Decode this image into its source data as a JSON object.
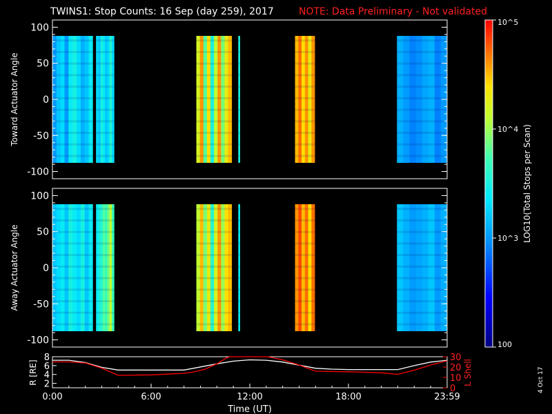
{
  "title": "TWINS1: Stop Counts: 16 Sep (day 259), 2017",
  "note": "NOTE: Data Preliminary - Not validated",
  "date_stamp": "4 Oct 17",
  "colors": {
    "background": "#000000",
    "text": "#ffffff",
    "note": "#ff2020",
    "radius_line": "#ffffff",
    "lshell_line": "#ff0000"
  },
  "chart_data": [
    {
      "type": "heatmap",
      "panel": "toward",
      "ylabel": "Toward Actuator Angle",
      "ylim": [
        -110,
        110
      ],
      "yticks": [
        "100",
        "50",
        "0",
        "-50",
        "-100"
      ],
      "angle_range": [
        -88,
        88
      ],
      "x_unit": "hours UT",
      "xlim": [
        0,
        24
      ],
      "data_blocks": [
        {
          "start": 0.0,
          "end": 2.45,
          "level": "medium",
          "values": [
            3.0,
            3.2,
            3.3,
            3.0,
            3.4,
            3.5,
            3.3,
            3.1,
            3.2,
            3.4
          ]
        },
        {
          "start": 2.65,
          "end": 3.75,
          "level": "medium",
          "values": [
            3.3,
            3.2,
            3.5,
            3.4,
            3.2,
            3.3,
            3.6,
            3.3
          ]
        },
        {
          "start": 8.75,
          "end": 10.9,
          "level": "high",
          "values": [
            4.2,
            4.6,
            3.8,
            4.4,
            3.5,
            4.1,
            4.6,
            3.9,
            4.3,
            4.5
          ]
        },
        {
          "start": 11.3,
          "end": 11.4,
          "level": "medium",
          "values": [
            3.5
          ]
        },
        {
          "start": 14.75,
          "end": 15.95,
          "level": "high",
          "values": [
            4.5,
            4.7,
            4.4,
            4.6,
            4.3,
            4.6
          ]
        },
        {
          "start": 20.95,
          "end": 24.0,
          "level": "low",
          "values": [
            3.1,
            3.0,
            2.9,
            2.95,
            3.05,
            3.1,
            2.9,
            3.0
          ]
        }
      ]
    },
    {
      "type": "heatmap",
      "panel": "away",
      "ylabel": "Away Actuator Angle",
      "ylim": [
        -110,
        110
      ],
      "yticks": [
        "100",
        "50",
        "0",
        "-50",
        "-100"
      ],
      "angle_range": [
        -88,
        88
      ],
      "x_unit": "hours UT",
      "xlim": [
        0,
        24
      ],
      "data_blocks": [
        {
          "start": 0.0,
          "end": 2.45,
          "level": "medium",
          "values": [
            3.2,
            3.3,
            3.4,
            3.2,
            3.5,
            3.4,
            3.3,
            3.5,
            3.2,
            3.4
          ]
        },
        {
          "start": 2.65,
          "end": 3.75,
          "level": "medium",
          "values": [
            3.4,
            3.5,
            3.6,
            3.8,
            3.7,
            3.9,
            4.1,
            3.7
          ]
        },
        {
          "start": 8.75,
          "end": 10.9,
          "level": "high",
          "values": [
            4.1,
            4.5,
            3.9,
            4.3,
            3.6,
            4.2,
            4.6,
            4.0,
            4.4,
            4.5
          ]
        },
        {
          "start": 11.3,
          "end": 11.4,
          "level": "medium",
          "values": [
            3.4
          ]
        },
        {
          "start": 14.75,
          "end": 15.95,
          "level": "high",
          "values": [
            4.6,
            4.8,
            4.5,
            4.7,
            4.4,
            4.7
          ]
        },
        {
          "start": 20.95,
          "end": 24.0,
          "level": "low",
          "values": [
            3.2,
            3.1,
            3.0,
            3.05,
            3.1,
            3.2,
            3.0,
            3.1
          ]
        }
      ]
    },
    {
      "type": "line",
      "panel": "orbit",
      "ylabel_left": "R [RE]",
      "ylabel_right": "L Shell",
      "ylim_left": [
        1,
        8
      ],
      "ylim_right": [
        0,
        30
      ],
      "yticks_left": [
        "8",
        "6",
        "4",
        "2"
      ],
      "yticks_right": [
        "30",
        "20",
        "10",
        "0"
      ],
      "xlabel": "Time (UT)",
      "xticks": [
        "0:00",
        "6:00",
        "12:00",
        "18:00",
        "23:59"
      ],
      "xlim": [
        0,
        24
      ],
      "series": [
        {
          "axis": "left",
          "x": [
            0,
            1,
            2,
            3,
            4,
            6,
            8,
            9,
            10,
            11,
            12,
            13,
            14,
            15,
            16,
            17,
            18,
            19,
            20,
            21,
            22,
            23,
            24
          ],
          "y": [
            7.2,
            7.2,
            6.7,
            5.6,
            5.0,
            5.0,
            5.0,
            5.7,
            6.4,
            7.0,
            7.3,
            7.2,
            6.8,
            6.1,
            5.4,
            5.2,
            5.1,
            5.1,
            5.1,
            5.1,
            6.0,
            6.8,
            7.2
          ]
        },
        {
          "axis": "right",
          "x": [
            0,
            1,
            2,
            3,
            4,
            6,
            8,
            8.5,
            9.3,
            10.1,
            10.6,
            10.8,
            13.1,
            13.4,
            14,
            15,
            16,
            18,
            20,
            21,
            22,
            23,
            24
          ],
          "y": [
            25,
            25,
            24,
            19,
            12,
            12.5,
            14,
            15,
            18,
            24,
            29,
            31,
            31,
            29,
            27,
            22,
            16,
            15.5,
            14.5,
            13,
            17,
            22,
            26
          ]
        }
      ]
    },
    {
      "type": "colorbar",
      "label": "LOG10(Total Stops per Scan)",
      "scale": "log",
      "range": [
        100,
        100000
      ],
      "ticks": [
        {
          "label": "100",
          "value": 100
        },
        {
          "label": "10^3",
          "value": 1000
        },
        {
          "label": "10^4",
          "value": 10000
        },
        {
          "label": "10^5",
          "value": 100000
        }
      ]
    }
  ]
}
